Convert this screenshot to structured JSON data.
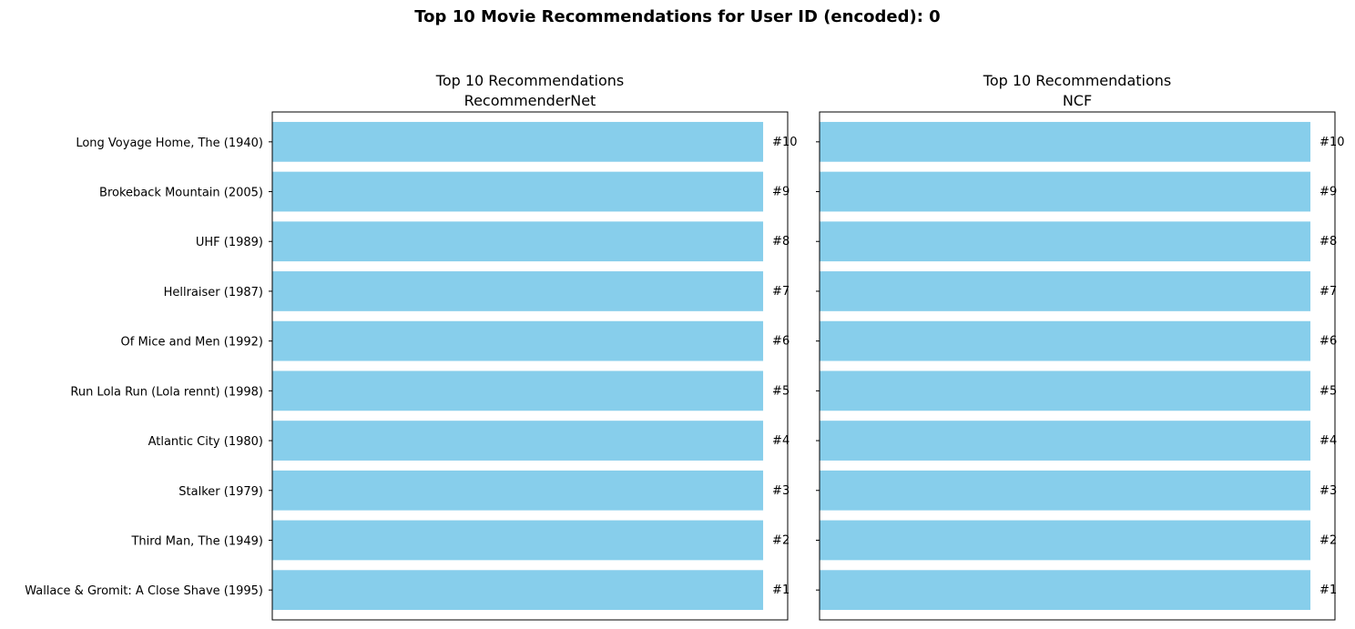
{
  "figure": {
    "title": "Top 10 Movie Recommendations for User ID (encoded): 0"
  },
  "colors": {
    "bar": "#87CEEB",
    "axis": "#000000",
    "background": "#ffffff"
  },
  "chart_data": [
    {
      "type": "bar",
      "orientation": "horizontal",
      "title": "Top 10 Recommendations\nRecommenderNet",
      "title_lines": [
        "Top 10 Recommendations",
        "RecommenderNet"
      ],
      "categories": [
        "Wallace & Gromit: A Close Shave (1995)",
        "Third Man, The (1949)",
        "Stalker (1979)",
        "Atlantic City (1980)",
        "Run Lola Run (Lola rennt) (1998)",
        "Of Mice and Men (1992)",
        "Hellraiser (1987)",
        "UHF (1989)",
        "Brokeback Mountain (2005)",
        "Long Voyage Home, The (1940)"
      ],
      "show_category_labels": true,
      "values": [
        1,
        1,
        1,
        1,
        1,
        1,
        1,
        1,
        1,
        1
      ],
      "bar_labels": [
        "#1",
        "#2",
        "#3",
        "#4",
        "#5",
        "#6",
        "#7",
        "#8",
        "#9",
        "#10"
      ],
      "xlim": [
        0,
        1.05
      ],
      "xticks_visible": false,
      "grid": false
    },
    {
      "type": "bar",
      "orientation": "horizontal",
      "title": "Top 10 Recommendations\nNCF",
      "title_lines": [
        "Top 10 Recommendations",
        "NCF"
      ],
      "categories": [
        "",
        "",
        "",
        "",
        "",
        "",
        "",
        "",
        "",
        ""
      ],
      "show_category_labels": false,
      "values": [
        1,
        1,
        1,
        1,
        1,
        1,
        1,
        1,
        1,
        1
      ],
      "bar_labels": [
        "#1",
        "#2",
        "#3",
        "#4",
        "#5",
        "#6",
        "#7",
        "#8",
        "#9",
        "#10"
      ],
      "xlim": [
        0,
        1.05
      ],
      "xticks_visible": false,
      "grid": false
    }
  ]
}
